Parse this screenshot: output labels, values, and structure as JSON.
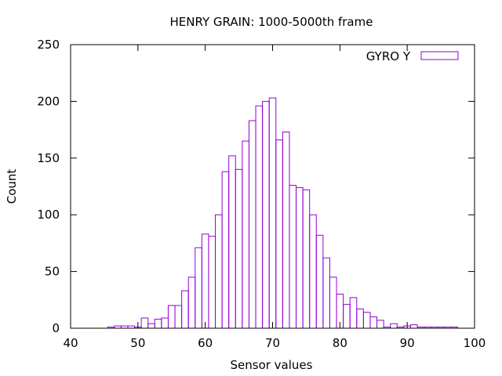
{
  "chart_data": {
    "type": "bar",
    "title": "HENRY GRAIN: 1000-5000th frame",
    "xlabel": "Sensor values",
    "ylabel": "Count",
    "xlim": [
      40,
      100
    ],
    "ylim": [
      0,
      250
    ],
    "xticks": [
      40,
      50,
      60,
      70,
      80,
      90,
      100
    ],
    "yticks": [
      0,
      50,
      100,
      150,
      200,
      250
    ],
    "grid": false,
    "legend_position": "top-right",
    "bin_width": 1,
    "series": [
      {
        "name": "GYRO Y",
        "color": "#9400d3",
        "x": [
          46,
          47,
          48,
          49,
          50,
          51,
          52,
          53,
          54,
          55,
          56,
          57,
          58,
          59,
          60,
          61,
          62,
          63,
          64,
          65,
          66,
          67,
          68,
          69,
          70,
          71,
          72,
          73,
          74,
          75,
          76,
          77,
          78,
          79,
          80,
          81,
          82,
          83,
          84,
          85,
          86,
          87,
          88,
          89,
          90,
          91,
          92,
          93,
          94,
          95,
          96,
          97
        ],
        "values": [
          1,
          2,
          2,
          2,
          1,
          9,
          4,
          8,
          9,
          20,
          20,
          33,
          45,
          71,
          83,
          81,
          100,
          138,
          152,
          140,
          165,
          183,
          196,
          200,
          203,
          166,
          173,
          126,
          124,
          122,
          100,
          82,
          62,
          45,
          30,
          21,
          27,
          17,
          14,
          10,
          7,
          1,
          4,
          1,
          2,
          3,
          1,
          1,
          1,
          1,
          1,
          1
        ]
      }
    ]
  }
}
